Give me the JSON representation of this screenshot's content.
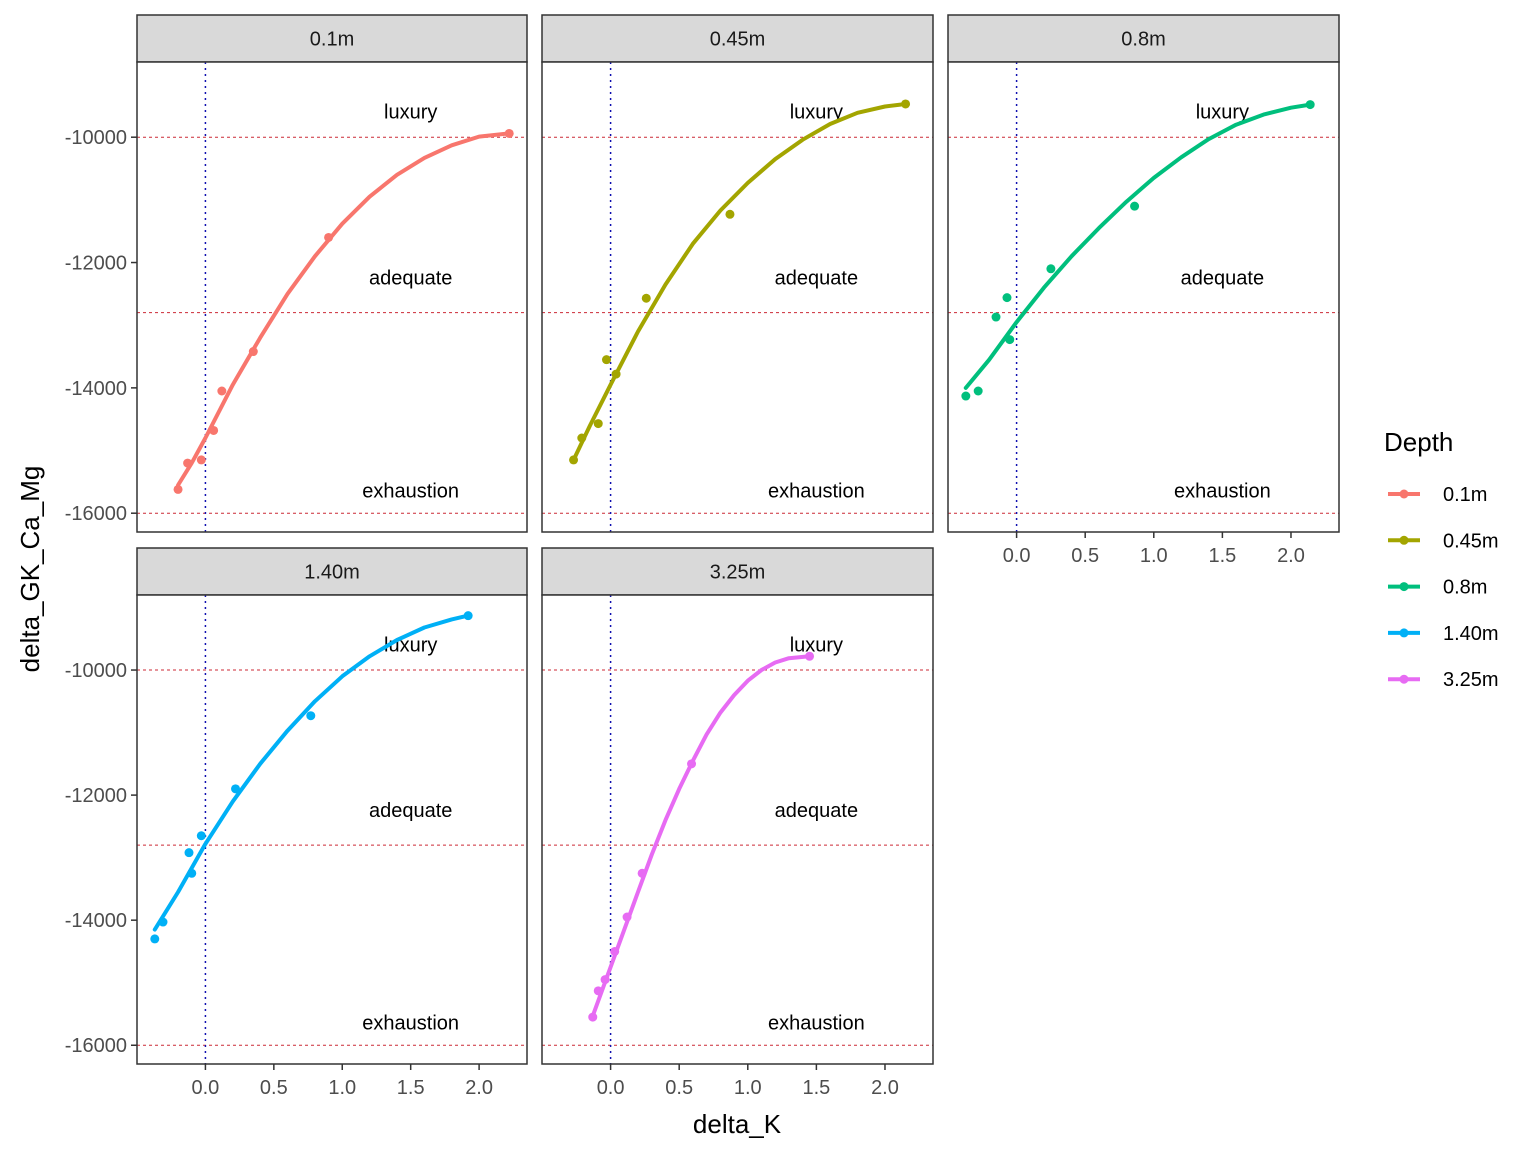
{
  "chart_data": {
    "type": "scatter",
    "facet_by": "Depth",
    "xlabel": "delta_K",
    "ylabel": "delta_GK_Ca_Mg",
    "xlim": [
      -0.5,
      2.35
    ],
    "ylim": [
      -16300,
      -8800
    ],
    "x_ticks": [
      0.0,
      0.5,
      1.0,
      1.5,
      2.0
    ],
    "x_tick_labels": [
      "0.0",
      "0.5",
      "1.0",
      "1.5",
      "2.0"
    ],
    "y_ticks": [
      -10000,
      -12000,
      -14000,
      -16000
    ],
    "y_tick_labels": [
      "-10000",
      "-12000",
      "-14000",
      "-16000"
    ],
    "vline_x": 0,
    "hlines": [
      -10000,
      -12800,
      -16000
    ],
    "zone_labels": [
      {
        "text": "luxury",
        "x": 1.5,
        "y": -9700
      },
      {
        "text": "adequate",
        "x": 1.5,
        "y": -12350
      },
      {
        "text": "exhaustion",
        "x": 1.5,
        "y": -15750
      }
    ],
    "grid": false,
    "legend": {
      "title": "Depth",
      "position": "right",
      "entries": [
        "0.1m",
        "0.45m",
        "0.8m",
        "1.40m",
        "3.25m"
      ]
    },
    "series": [
      {
        "name": "0.1m",
        "color": "#F8766D",
        "points": [
          [
            -0.2,
            -15620
          ],
          [
            -0.13,
            -15200
          ],
          [
            -0.03,
            -15150
          ],
          [
            0.06,
            -14680
          ],
          [
            0.12,
            -14050
          ],
          [
            0.35,
            -13420
          ],
          [
            0.9,
            -11600
          ],
          [
            2.22,
            -9940
          ]
        ],
        "fit": [
          [
            -0.2,
            -15550
          ],
          [
            -0.1,
            -15200
          ],
          [
            0.0,
            -14800
          ],
          [
            0.2,
            -13950
          ],
          [
            0.4,
            -13200
          ],
          [
            0.6,
            -12500
          ],
          [
            0.8,
            -11900
          ],
          [
            1.0,
            -11380
          ],
          [
            1.2,
            -10950
          ],
          [
            1.4,
            -10600
          ],
          [
            1.6,
            -10330
          ],
          [
            1.8,
            -10130
          ],
          [
            2.0,
            -9990
          ],
          [
            2.22,
            -9940
          ]
        ]
      },
      {
        "name": "0.45m",
        "color": "#A3A500",
        "points": [
          [
            -0.27,
            -15150
          ],
          [
            -0.21,
            -14800
          ],
          [
            -0.09,
            -14570
          ],
          [
            -0.03,
            -13550
          ],
          [
            0.04,
            -13780
          ],
          [
            0.26,
            -12570
          ],
          [
            0.87,
            -11230
          ],
          [
            2.15,
            -9470
          ]
        ],
        "fit": [
          [
            -0.27,
            -15150
          ],
          [
            -0.15,
            -14600
          ],
          [
            0.0,
            -13950
          ],
          [
            0.2,
            -13100
          ],
          [
            0.4,
            -12350
          ],
          [
            0.6,
            -11700
          ],
          [
            0.8,
            -11170
          ],
          [
            1.0,
            -10730
          ],
          [
            1.2,
            -10350
          ],
          [
            1.4,
            -10040
          ],
          [
            1.6,
            -9790
          ],
          [
            1.8,
            -9610
          ],
          [
            2.0,
            -9510
          ],
          [
            2.15,
            -9470
          ]
        ]
      },
      {
        "name": "0.8m",
        "color": "#00BF7D",
        "points": [
          [
            -0.37,
            -14130
          ],
          [
            -0.28,
            -14050
          ],
          [
            -0.15,
            -12870
          ],
          [
            -0.07,
            -12560
          ],
          [
            -0.05,
            -13230
          ],
          [
            0.25,
            -12100
          ],
          [
            0.86,
            -11100
          ],
          [
            2.14,
            -9480
          ]
        ],
        "fit": [
          [
            -0.37,
            -14000
          ],
          [
            -0.2,
            -13550
          ],
          [
            0.0,
            -12950
          ],
          [
            0.2,
            -12400
          ],
          [
            0.4,
            -11900
          ],
          [
            0.6,
            -11450
          ],
          [
            0.8,
            -11030
          ],
          [
            1.0,
            -10650
          ],
          [
            1.2,
            -10320
          ],
          [
            1.4,
            -10030
          ],
          [
            1.6,
            -9800
          ],
          [
            1.8,
            -9640
          ],
          [
            2.0,
            -9530
          ],
          [
            2.14,
            -9480
          ]
        ]
      },
      {
        "name": "1.40m",
        "color": "#00B0F6",
        "points": [
          [
            -0.37,
            -14300
          ],
          [
            -0.31,
            -14030
          ],
          [
            -0.12,
            -12920
          ],
          [
            -0.1,
            -13250
          ],
          [
            -0.03,
            -12650
          ],
          [
            0.22,
            -11900
          ],
          [
            0.77,
            -10730
          ],
          [
            1.92,
            -9130
          ]
        ],
        "fit": [
          [
            -0.37,
            -14150
          ],
          [
            -0.2,
            -13550
          ],
          [
            0.0,
            -12780
          ],
          [
            0.2,
            -12100
          ],
          [
            0.4,
            -11500
          ],
          [
            0.6,
            -10970
          ],
          [
            0.8,
            -10500
          ],
          [
            1.0,
            -10100
          ],
          [
            1.2,
            -9780
          ],
          [
            1.4,
            -9520
          ],
          [
            1.6,
            -9320
          ],
          [
            1.8,
            -9190
          ],
          [
            1.92,
            -9130
          ]
        ]
      },
      {
        "name": "3.25m",
        "color": "#E76BF3",
        "points": [
          [
            -0.13,
            -15550
          ],
          [
            -0.09,
            -15130
          ],
          [
            -0.04,
            -14950
          ],
          [
            0.03,
            -14500
          ],
          [
            0.12,
            -13950
          ],
          [
            0.23,
            -13250
          ],
          [
            0.59,
            -11500
          ],
          [
            1.45,
            -9780
          ]
        ],
        "fit": [
          [
            -0.13,
            -15530
          ],
          [
            0.0,
            -14750
          ],
          [
            0.1,
            -14150
          ],
          [
            0.2,
            -13550
          ],
          [
            0.3,
            -12950
          ],
          [
            0.4,
            -12400
          ],
          [
            0.5,
            -11900
          ],
          [
            0.6,
            -11450
          ],
          [
            0.7,
            -11030
          ],
          [
            0.8,
            -10680
          ],
          [
            0.9,
            -10400
          ],
          [
            1.0,
            -10170
          ],
          [
            1.1,
            -10000
          ],
          [
            1.2,
            -9880
          ],
          [
            1.3,
            -9810
          ],
          [
            1.45,
            -9780
          ]
        ]
      }
    ]
  }
}
